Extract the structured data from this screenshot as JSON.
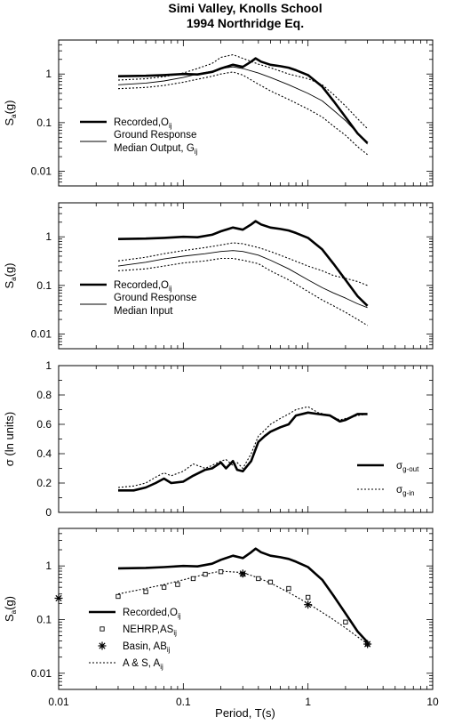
{
  "chart_data": {
    "type": "line",
    "title": [
      "Simi Valley, Knolls School",
      "1994 Northridge Eq."
    ],
    "xlabel": "Period, T(s)",
    "xscale": "log",
    "xlim": [
      0.01,
      10
    ],
    "x_ticks": [
      "0.01",
      "0.1",
      "1",
      "10"
    ],
    "panels": [
      {
        "id": "p1",
        "yscale": "log",
        "ylim": [
          0.005,
          5
        ],
        "y_ticks": [
          "1",
          "0.1",
          "0.01"
        ],
        "ylabel": {
          "main": "S",
          "sub": "a",
          "rest": "(g)"
        },
        "legend_position": "left",
        "legend": [
          {
            "text": "Recorded,O",
            "sub": "ij",
            "style": "thick"
          },
          {
            "text": "Ground Response",
            "text2": "Median Output, G",
            "sub": "ij",
            "style": "thin"
          }
        ],
        "series": [
          {
            "name": "Recorded,Oij",
            "style": "thick",
            "x": [
              0.03,
              0.05,
              0.07,
              0.1,
              0.13,
              0.17,
              0.2,
              0.25,
              0.3,
              0.35,
              0.38,
              0.42,
              0.5,
              0.6,
              0.7,
              0.8,
              1.0,
              1.3,
              1.6,
              2.0,
              2.5,
              3.0
            ],
            "y": [
              0.9,
              0.92,
              0.95,
              1.0,
              0.98,
              1.1,
              1.3,
              1.55,
              1.4,
              1.8,
              2.1,
              1.8,
              1.55,
              1.45,
              1.35,
              1.2,
              0.95,
              0.55,
              0.28,
              0.13,
              0.06,
              0.038
            ]
          },
          {
            "name": "Ground Response Median Output, Gij",
            "style": "thin",
            "x": [
              0.03,
              0.05,
              0.07,
              0.1,
              0.13,
              0.17,
              0.2,
              0.25,
              0.3,
              0.4,
              0.5,
              0.7,
              1.0,
              1.3,
              1.6,
              2.0,
              2.5,
              3.0
            ],
            "y": [
              0.6,
              0.65,
              0.72,
              0.85,
              1.0,
              1.15,
              1.3,
              1.4,
              1.3,
              1.05,
              0.85,
              0.6,
              0.4,
              0.28,
              0.18,
              0.11,
              0.06,
              0.036
            ]
          },
          {
            "name": "upper",
            "style": "dotted",
            "x": [
              0.03,
              0.05,
              0.07,
              0.1,
              0.13,
              0.17,
              0.2,
              0.25,
              0.3,
              0.4,
              0.5,
              0.7,
              1.0,
              1.3,
              1.6,
              2.0,
              2.5,
              3.0
            ],
            "y": [
              0.75,
              0.8,
              0.88,
              1.05,
              1.3,
              1.65,
              2.2,
              2.5,
              2.1,
              1.6,
              1.35,
              1.0,
              0.8,
              0.6,
              0.38,
              0.22,
              0.12,
              0.075
            ]
          },
          {
            "name": "lower",
            "style": "dotted",
            "x": [
              0.03,
              0.05,
              0.07,
              0.1,
              0.13,
              0.17,
              0.2,
              0.25,
              0.3,
              0.4,
              0.5,
              0.7,
              1.0,
              1.3,
              1.6,
              2.0,
              2.5,
              3.0
            ],
            "y": [
              0.5,
              0.53,
              0.58,
              0.68,
              0.78,
              0.9,
              1.0,
              1.1,
              0.95,
              0.62,
              0.45,
              0.3,
              0.19,
              0.13,
              0.085,
              0.055,
              0.032,
              0.022
            ]
          }
        ]
      },
      {
        "id": "p2",
        "yscale": "log",
        "ylim": [
          0.005,
          5
        ],
        "y_ticks": [
          "1",
          "0.1",
          "0.01"
        ],
        "ylabel": {
          "main": "S",
          "sub": "a",
          "rest": "(g)"
        },
        "legend_position": "left",
        "legend": [
          {
            "text": "Recorded,O",
            "sub": "ij",
            "style": "thick"
          },
          {
            "text": "Ground Response",
            "text2": "Median Input",
            "sub": "",
            "style": "thin"
          }
        ],
        "series": [
          {
            "name": "Recorded,Oij",
            "style": "thick",
            "x": [
              0.03,
              0.05,
              0.07,
              0.1,
              0.13,
              0.17,
              0.2,
              0.25,
              0.3,
              0.35,
              0.38,
              0.42,
              0.5,
              0.6,
              0.7,
              0.8,
              1.0,
              1.3,
              1.6,
              2.0,
              2.5,
              3.0
            ],
            "y": [
              0.9,
              0.92,
              0.95,
              1.0,
              0.98,
              1.1,
              1.3,
              1.55,
              1.4,
              1.8,
              2.1,
              1.8,
              1.55,
              1.45,
              1.35,
              1.2,
              0.95,
              0.55,
              0.28,
              0.13,
              0.06,
              0.038
            ]
          },
          {
            "name": "Ground Response Median Input",
            "style": "thin",
            "x": [
              0.03,
              0.05,
              0.07,
              0.1,
              0.15,
              0.2,
              0.25,
              0.3,
              0.4,
              0.5,
              0.7,
              1.0,
              1.3,
              1.6,
              2.0,
              2.5,
              3.0
            ],
            "y": [
              0.25,
              0.3,
              0.35,
              0.4,
              0.45,
              0.5,
              0.52,
              0.5,
              0.42,
              0.33,
              0.22,
              0.13,
              0.09,
              0.07,
              0.055,
              0.042,
              0.035
            ]
          },
          {
            "name": "upper",
            "style": "dotted",
            "x": [
              0.03,
              0.05,
              0.07,
              0.1,
              0.15,
              0.2,
              0.25,
              0.3,
              0.4,
              0.5,
              0.7,
              1.0,
              1.3,
              1.6,
              2.0,
              2.5,
              3.0
            ],
            "y": [
              0.32,
              0.38,
              0.45,
              0.52,
              0.6,
              0.68,
              0.75,
              0.72,
              0.6,
              0.5,
              0.36,
              0.25,
              0.2,
              0.16,
              0.14,
              0.12,
              0.1
            ]
          },
          {
            "name": "lower",
            "style": "dotted",
            "x": [
              0.03,
              0.05,
              0.07,
              0.1,
              0.15,
              0.2,
              0.25,
              0.3,
              0.4,
              0.5,
              0.7,
              1.0,
              1.3,
              1.6,
              2.0,
              2.5,
              3.0
            ],
            "y": [
              0.2,
              0.22,
              0.25,
              0.29,
              0.32,
              0.36,
              0.36,
              0.33,
              0.28,
              0.2,
              0.13,
              0.075,
              0.05,
              0.038,
              0.028,
              0.02,
              0.015
            ]
          }
        ]
      },
      {
        "id": "p3",
        "yscale": "linear",
        "ylim": [
          0,
          1
        ],
        "y_ticks": [
          "1",
          "0.8",
          "0.6",
          "0.4",
          "0.2",
          "0"
        ],
        "ylabel": {
          "main": "σ (ln units)",
          "sub": "",
          "rest": ""
        },
        "legend_position": "bottom-right",
        "legend": [
          {
            "text": "σ",
            "sub": "g-out",
            "style": "thick"
          },
          {
            "text": "σ",
            "sub": "g-in",
            "style": "dotted"
          }
        ],
        "series": [
          {
            "name": "σ g-out",
            "style": "thick",
            "x": [
              0.03,
              0.04,
              0.05,
              0.06,
              0.07,
              0.08,
              0.1,
              0.12,
              0.15,
              0.17,
              0.2,
              0.22,
              0.25,
              0.27,
              0.3,
              0.35,
              0.4,
              0.45,
              0.5,
              0.6,
              0.7,
              0.8,
              1.0,
              1.2,
              1.5,
              1.8,
              2.0,
              2.5,
              3.0
            ],
            "y": [
              0.15,
              0.15,
              0.17,
              0.2,
              0.23,
              0.2,
              0.21,
              0.25,
              0.29,
              0.3,
              0.34,
              0.3,
              0.35,
              0.29,
              0.28,
              0.35,
              0.48,
              0.52,
              0.55,
              0.58,
              0.6,
              0.66,
              0.68,
              0.67,
              0.66,
              0.62,
              0.63,
              0.67,
              0.67
            ]
          },
          {
            "name": "σ g-in",
            "style": "dotted",
            "x": [
              0.03,
              0.04,
              0.05,
              0.06,
              0.07,
              0.08,
              0.1,
              0.12,
              0.15,
              0.17,
              0.2,
              0.22,
              0.25,
              0.27,
              0.3,
              0.35,
              0.4,
              0.45,
              0.5,
              0.6,
              0.7,
              0.8,
              1.0,
              1.2,
              1.5,
              1.8,
              2.0,
              2.5,
              3.0
            ],
            "y": [
              0.17,
              0.18,
              0.2,
              0.24,
              0.27,
              0.25,
              0.28,
              0.33,
              0.3,
              0.32,
              0.35,
              0.36,
              0.32,
              0.34,
              0.3,
              0.4,
              0.52,
              0.56,
              0.6,
              0.64,
              0.67,
              0.7,
              0.72,
              0.68,
              0.66,
              0.63,
              0.64,
              0.66,
              0.67
            ]
          }
        ]
      },
      {
        "id": "p4",
        "yscale": "log",
        "ylim": [
          0.005,
          5
        ],
        "y_ticks": [
          "1",
          "0.1",
          "0.01"
        ],
        "ylabel": {
          "main": "S",
          "sub": "a",
          "rest": "(g)"
        },
        "legend_position": "bottom-left",
        "legend": [
          {
            "text": "Recorded,O",
            "sub": "ij",
            "style": "thick"
          },
          {
            "text": "NEHRP,AS",
            "sub": "ij",
            "style": "square"
          },
          {
            "text": "Basin, AB",
            "sub": "ij",
            "style": "star"
          },
          {
            "text": "A & S, A",
            "sub": "ij",
            "style": "dotted"
          }
        ],
        "series": [
          {
            "name": "Recorded,Oij",
            "style": "thick",
            "x": [
              0.03,
              0.05,
              0.07,
              0.1,
              0.13,
              0.17,
              0.2,
              0.25,
              0.3,
              0.35,
              0.38,
              0.42,
              0.5,
              0.6,
              0.7,
              0.8,
              1.0,
              1.3,
              1.6,
              2.0,
              2.5,
              3.0
            ],
            "y": [
              0.9,
              0.92,
              0.95,
              1.0,
              0.98,
              1.1,
              1.3,
              1.55,
              1.4,
              1.8,
              2.1,
              1.8,
              1.55,
              1.45,
              1.35,
              1.2,
              0.95,
              0.55,
              0.28,
              0.13,
              0.06,
              0.038
            ]
          },
          {
            "name": "NEHRP,ASij",
            "style": "square",
            "x": [
              0.03,
              0.05,
              0.07,
              0.09,
              0.12,
              0.15,
              0.2,
              0.3,
              0.4,
              0.5,
              0.7,
              1.0,
              2.0,
              3.0
            ],
            "y": [
              0.27,
              0.33,
              0.4,
              0.45,
              0.58,
              0.7,
              0.78,
              0.7,
              0.58,
              0.5,
              0.38,
              0.26,
              0.09,
              0.035
            ]
          },
          {
            "name": "Basin, ABij",
            "style": "star",
            "x": [
              0.01,
              0.3,
              1.0,
              3.0
            ],
            "y": [
              0.25,
              0.72,
              0.19,
              0.035
            ]
          },
          {
            "name": "A & S, Aij",
            "style": "dotted",
            "x": [
              0.03,
              0.05,
              0.07,
              0.1,
              0.15,
              0.2,
              0.3,
              0.4,
              0.5,
              0.7,
              1.0,
              1.5,
              2.0,
              3.0
            ],
            "y": [
              0.3,
              0.38,
              0.45,
              0.55,
              0.7,
              0.8,
              0.75,
              0.6,
              0.48,
              0.32,
              0.2,
              0.11,
              0.07,
              0.035
            ]
          }
        ]
      }
    ]
  }
}
